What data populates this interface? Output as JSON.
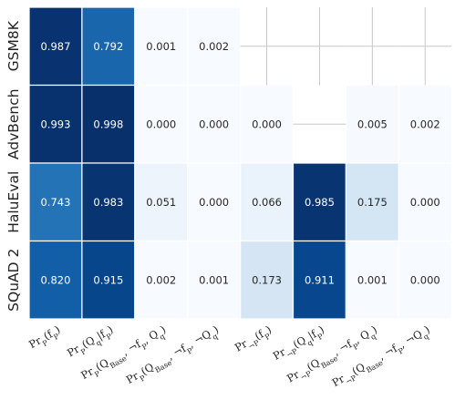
{
  "chart_data": {
    "type": "heatmap",
    "rows": [
      "GSM8K",
      "AdvBench",
      "HaluEval",
      "SQuAD 2"
    ],
    "columns": [
      "Pr_P(f_P)",
      "Pr_P(Q_q | f_P)",
      "Pr_P(Q_Base, ¬f_P, Q_q)",
      "Pr_P(Q_Base, ¬f_P, ¬Q_q)",
      "Pr_¬P(f_P)",
      "Pr_¬P(Q_q | f_P)",
      "Pr_¬P(Q_Base, ¬f_P, Q_q)",
      "Pr_¬P(Q_Base, ¬f_P, ¬Q_q)"
    ],
    "column_parts": [
      {
        "base": "Pr",
        "sub": "P",
        "arg": "(",
        "argsub": "",
        "rest": "f",
        "restsub": "P",
        "tail": ")"
      },
      {
        "base": "Pr",
        "sub": "P",
        "arg": "(Q",
        "argsub": "q",
        "rest": "|f",
        "restsub": "P",
        "tail": ")"
      },
      {
        "base": "Pr",
        "sub": "P",
        "arg": "(Q",
        "argsub": "Base",
        "rest": ", ¬f",
        "restsub": "P",
        "tail": ", Q",
        "tailsub": "q",
        "end": ")"
      },
      {
        "base": "Pr",
        "sub": "P",
        "arg": "(Q",
        "argsub": "Base",
        "rest": ", ¬f",
        "restsub": "P",
        "tail": ", ¬Q",
        "tailsub": "q",
        "end": ")"
      },
      {
        "base": "Pr",
        "sub": "¬P",
        "arg": "(",
        "argsub": "",
        "rest": "f",
        "restsub": "P",
        "tail": ")"
      },
      {
        "base": "Pr",
        "sub": "¬P",
        "arg": "(Q",
        "argsub": "q",
        "rest": "|f",
        "restsub": "P",
        "tail": ")"
      },
      {
        "base": "Pr",
        "sub": "¬P",
        "arg": "(Q",
        "argsub": "Base",
        "rest": ", ¬f",
        "restsub": "P",
        "tail": ", Q",
        "tailsub": "q",
        "end": ")"
      },
      {
        "base": "Pr",
        "sub": "¬P",
        "arg": "(Q",
        "argsub": "Base",
        "rest": ", ¬f",
        "restsub": "P",
        "tail": ", ¬Q",
        "tailsub": "q",
        "end": ")"
      }
    ],
    "values": [
      [
        0.987,
        0.792,
        0.001,
        0.002,
        null,
        null,
        null,
        null
      ],
      [
        0.993,
        0.998,
        0.0,
        0.0,
        0.0,
        null,
        0.005,
        0.002
      ],
      [
        0.743,
        0.983,
        0.051,
        0.0,
        0.066,
        0.985,
        0.175,
        0.0
      ],
      [
        0.82,
        0.915,
        0.002,
        0.001,
        0.173,
        0.911,
        0.001,
        0.0
      ]
    ],
    "value_labels": [
      [
        "0.987",
        "0.792",
        "0.001",
        "0.002",
        "",
        "",
        "",
        ""
      ],
      [
        "0.993",
        "0.998",
        "0.000",
        "0.000",
        "0.000",
        "",
        "0.005",
        "0.002"
      ],
      [
        "0.743",
        "0.983",
        "0.051",
        "0.000",
        "0.066",
        "0.985",
        "0.175",
        "0.000"
      ],
      [
        "0.820",
        "0.915",
        "0.002",
        "0.001",
        "0.173",
        "0.911",
        "0.001",
        "0.000"
      ]
    ],
    "missing_cell_marker": "cross",
    "colormap": "Blues",
    "value_range": [
      0,
      1
    ],
    "colors": {
      "low": "#f7fbff",
      "high": "#08306b",
      "missing_line": "#c8c8c8",
      "cell_border": "#ffffff",
      "text_dark": "#262626",
      "text_light": "#ffffff"
    }
  }
}
